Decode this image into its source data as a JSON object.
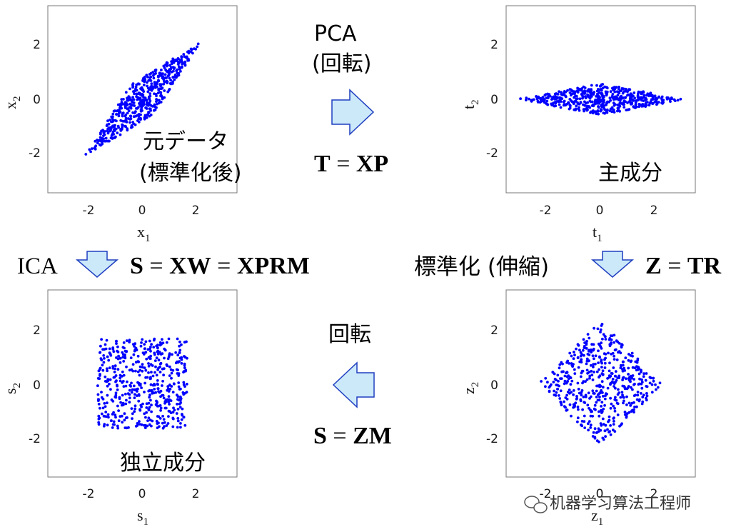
{
  "texts": {
    "pca_line1": "PCA",
    "pca_line2": "(回転)",
    "eq_T_lhs": "T",
    "eq_T_op": " = ",
    "eq_T_rhs": "XP",
    "ica": "ICA",
    "eq_S1_a": "S",
    "eq_S1_op1": " = ",
    "eq_S1_b": "XW",
    "eq_S1_op2": " = ",
    "eq_S1_c": "XPRM",
    "std_stretch": "標準化 (伸縮)",
    "eq_Z_lhs": "Z",
    "eq_Z_op": " = ",
    "eq_Z_rhs": "TR",
    "rotation": "回転",
    "eq_S2_lhs": "S",
    "eq_S2_op": " = ",
    "eq_S2_rhs": "ZM",
    "watermark": "机器学习算法工程师"
  },
  "arrow_color": "#cce9fa",
  "arrow_stroke": "#1f3fc0",
  "point_color": "#0000ff",
  "chart_data": [
    {
      "type": "scatter",
      "annotation_line1": "元データ",
      "annotation_line2": "(標準化後)",
      "xlabel_main": "x",
      "xlabel_sub": "1",
      "ylabel_main": "x",
      "ylabel_sub": "2",
      "xlim": [
        -3.5,
        3.5
      ],
      "ylim": [
        -3.5,
        3.5
      ],
      "xticks": [
        "-2",
        "0",
        "2"
      ],
      "yticks": [
        "2",
        "0",
        "-2"
      ],
      "distribution": "correlated",
      "n_points": 520
    },
    {
      "type": "scatter",
      "annotation_line1": "主成分",
      "annotation_line2": "",
      "xlabel_main": "t",
      "xlabel_sub": "1",
      "ylabel_main": "t",
      "ylabel_sub": "2",
      "xlim": [
        -3.5,
        3.5
      ],
      "ylim": [
        -3.5,
        3.5
      ],
      "xticks": [
        "-2",
        "0",
        "2"
      ],
      "yticks": [
        "2",
        "0",
        "-2"
      ],
      "distribution": "flat_ellipse",
      "n_points": 520
    },
    {
      "type": "scatter",
      "annotation_line1": "独立成分",
      "annotation_line2": "",
      "xlabel_main": "s",
      "xlabel_sub": "1",
      "ylabel_main": "s",
      "ylabel_sub": "2",
      "xlim": [
        -3.5,
        3.5
      ],
      "ylim": [
        -3.5,
        3.5
      ],
      "xticks": [
        "-2",
        "0",
        "2"
      ],
      "yticks": [
        "2",
        "0",
        "-2"
      ],
      "distribution": "uniform_square",
      "n_points": 520
    },
    {
      "type": "scatter",
      "annotation_line1": "",
      "annotation_line2": "",
      "xlabel_main": "z",
      "xlabel_sub": "1",
      "ylabel_main": "z",
      "ylabel_sub": "2",
      "xlim": [
        -3.5,
        3.5
      ],
      "ylim": [
        -3.5,
        3.5
      ],
      "xticks": [
        "-2",
        "0",
        "2"
      ],
      "yticks": [
        "2",
        "0",
        "-2"
      ],
      "distribution": "rotated_square",
      "n_points": 520
    }
  ]
}
